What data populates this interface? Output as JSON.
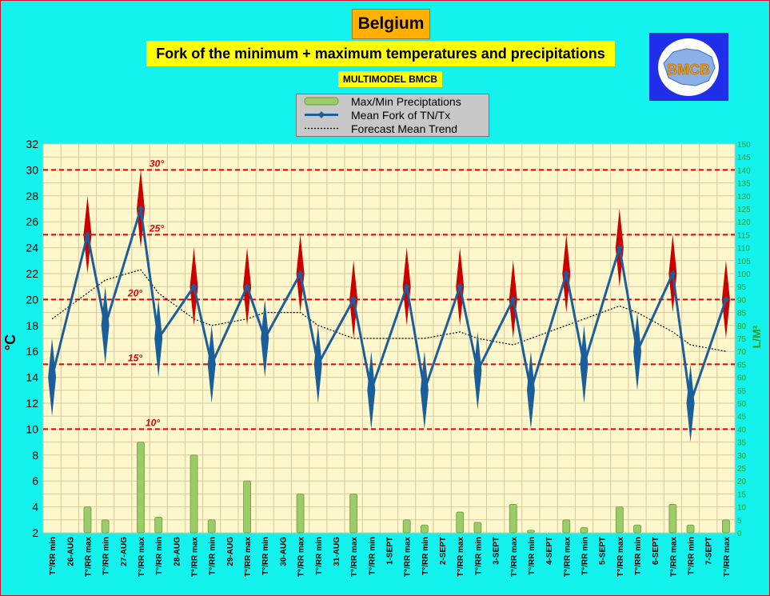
{
  "header": {
    "country": "Belgium",
    "title": "Fork of the minimum + maximum temperatures and precipitations",
    "subtitle": "MULTIMODEL BMCB",
    "logo_text": "BMCB"
  },
  "legend": {
    "precip": "Max/Min Preciptations",
    "fork": "Mean Fork of TN/Tx",
    "trend": "Forecast Mean Trend"
  },
  "colors": {
    "background": "#13f2ec",
    "plot_area": "#fff8cc",
    "grid": "#d8c8a0",
    "fork_line": "#1a5f9c",
    "min_diamond": "#1a5f9c",
    "max_diamond": "#cc0000",
    "ref_line": "#e60000",
    "precip_bar": "#9ccc6a",
    "right_axis": "#2a9d2a"
  },
  "chart_data": {
    "type": "line",
    "ylabel": "°C",
    "y2label": "L/M²",
    "ylim": [
      2,
      32
    ],
    "y2lim": [
      0,
      150
    ],
    "yticks": [
      2,
      4,
      6,
      8,
      10,
      12,
      14,
      16,
      18,
      20,
      22,
      24,
      26,
      28,
      30,
      32
    ],
    "y2ticks": [
      0,
      5,
      10,
      15,
      20,
      25,
      30,
      35,
      40,
      45,
      50,
      55,
      60,
      65,
      70,
      75,
      80,
      85,
      90,
      95,
      100,
      105,
      110,
      115,
      120,
      125,
      130,
      135,
      140,
      145,
      150
    ],
    "categories": [
      "T°/RR min",
      "26-AUG",
      "T°/RR max",
      "T°/RR min",
      "27-AUG",
      "T°/RR max",
      "T°/RR min",
      "28-AUG",
      "T°/RR max",
      "T°/RR min",
      "29-AUG",
      "T°/RR max",
      "T°/RR min",
      "30-AUG",
      "T°/RR max",
      "T°/RR min",
      "31-AUG",
      "T°/RR max",
      "T°/RR min",
      "1-SEPT",
      "T°/RR max",
      "T°/RR min",
      "2-SEPT",
      "T°/RR max",
      "T°/RR min",
      "3-SEPT",
      "T°/RR max",
      "T°/RR min",
      "4-SEPT",
      "T°/RR max",
      "T°/RR min",
      "5-SEPT",
      "T°/RR max",
      "T°/RR min",
      "6-SEPT",
      "T°/RR max",
      "T°/RR min",
      "7-SEPT",
      "T°/RR max"
    ],
    "reference_lines": [
      {
        "value": 30,
        "label": "30°"
      },
      {
        "value": 25,
        "label": "25°"
      },
      {
        "value": 20,
        "label": "20°"
      },
      {
        "value": 15,
        "label": "15°"
      },
      {
        "value": 10,
        "label": "10°"
      }
    ],
    "series": [
      {
        "name": "Mean Fork of TN/Tx",
        "points": [
          {
            "x": 0,
            "y": 14.0,
            "lo": 11.0,
            "hi": 17.0
          },
          {
            "x": 2,
            "y": 25.0,
            "lo": 22.0,
            "hi": 28.0
          },
          {
            "x": 3,
            "y": 18.0,
            "lo": 15.0,
            "hi": 21.0
          },
          {
            "x": 5,
            "y": 27.0,
            "lo": 24.0,
            "hi": 30.0
          },
          {
            "x": 6,
            "y": 17.0,
            "lo": 14.0,
            "hi": 20.0
          },
          {
            "x": 8,
            "y": 21.0,
            "lo": 18.0,
            "hi": 24.0
          },
          {
            "x": 9,
            "y": 15.0,
            "lo": 12.0,
            "hi": 18.0
          },
          {
            "x": 11,
            "y": 21.0,
            "lo": 18.0,
            "hi": 24.0
          },
          {
            "x": 12,
            "y": 17.0,
            "lo": 14.0,
            "hi": 20.0
          },
          {
            "x": 14,
            "y": 22.0,
            "lo": 19.0,
            "hi": 25.0
          },
          {
            "x": 15,
            "y": 15.0,
            "lo": 12.0,
            "hi": 18.0
          },
          {
            "x": 17,
            "y": 20.0,
            "lo": 17.0,
            "hi": 23.0
          },
          {
            "x": 18,
            "y": 13.0,
            "lo": 10.0,
            "hi": 16.0
          },
          {
            "x": 20,
            "y": 21.0,
            "lo": 18.0,
            "hi": 24.0
          },
          {
            "x": 21,
            "y": 13.0,
            "lo": 10.0,
            "hi": 16.0
          },
          {
            "x": 23,
            "y": 21.0,
            "lo": 18.0,
            "hi": 24.0
          },
          {
            "x": 24,
            "y": 14.5,
            "lo": 11.5,
            "hi": 17.5
          },
          {
            "x": 26,
            "y": 20.0,
            "lo": 17.0,
            "hi": 23.0
          },
          {
            "x": 27,
            "y": 13.0,
            "lo": 10.0,
            "hi": 16.0
          },
          {
            "x": 29,
            "y": 22.0,
            "lo": 19.0,
            "hi": 25.0
          },
          {
            "x": 30,
            "y": 15.0,
            "lo": 12.0,
            "hi": 18.0
          },
          {
            "x": 32,
            "y": 24.0,
            "lo": 21.0,
            "hi": 27.0
          },
          {
            "x": 33,
            "y": 16.0,
            "lo": 13.0,
            "hi": 19.0
          },
          {
            "x": 35,
            "y": 22.0,
            "lo": 19.0,
            "hi": 25.0
          },
          {
            "x": 36,
            "y": 12.0,
            "lo": 9.0,
            "hi": 15.0
          },
          {
            "x": 38,
            "y": 20.0,
            "lo": 17.0,
            "hi": 23.0
          }
        ]
      },
      {
        "name": "Forecast Mean Trend",
        "points": [
          {
            "x": 0,
            "y": 18.5
          },
          {
            "x": 2,
            "y": 20.5
          },
          {
            "x": 3,
            "y": 21.5
          },
          {
            "x": 5,
            "y": 22.3
          },
          {
            "x": 6,
            "y": 20.5
          },
          {
            "x": 8,
            "y": 18.5
          },
          {
            "x": 9,
            "y": 18.0
          },
          {
            "x": 11,
            "y": 18.5
          },
          {
            "x": 12,
            "y": 19.0
          },
          {
            "x": 14,
            "y": 19.0
          },
          {
            "x": 15,
            "y": 18.0
          },
          {
            "x": 17,
            "y": 17.0
          },
          {
            "x": 18,
            "y": 17.0
          },
          {
            "x": 20,
            "y": 17.0
          },
          {
            "x": 21,
            "y": 17.0
          },
          {
            "x": 23,
            "y": 17.5
          },
          {
            "x": 24,
            "y": 17.0
          },
          {
            "x": 26,
            "y": 16.5
          },
          {
            "x": 27,
            "y": 17.0
          },
          {
            "x": 29,
            "y": 18.0
          },
          {
            "x": 30,
            "y": 18.5
          },
          {
            "x": 32,
            "y": 19.5
          },
          {
            "x": 33,
            "y": 19.0
          },
          {
            "x": 35,
            "y": 17.5
          },
          {
            "x": 36,
            "y": 16.5
          },
          {
            "x": 38,
            "y": 16.0
          }
        ]
      },
      {
        "name": "Max/Min Preciptations",
        "axis": "right",
        "points": [
          {
            "x": 2,
            "y": 10
          },
          {
            "x": 3,
            "y": 5
          },
          {
            "x": 5,
            "y": 35
          },
          {
            "x": 6,
            "y": 6
          },
          {
            "x": 8,
            "y": 30
          },
          {
            "x": 9,
            "y": 5
          },
          {
            "x": 11,
            "y": 20
          },
          {
            "x": 14,
            "y": 15
          },
          {
            "x": 17,
            "y": 15
          },
          {
            "x": 20,
            "y": 5
          },
          {
            "x": 21,
            "y": 3
          },
          {
            "x": 23,
            "y": 8
          },
          {
            "x": 24,
            "y": 4
          },
          {
            "x": 26,
            "y": 11
          },
          {
            "x": 27,
            "y": 1
          },
          {
            "x": 29,
            "y": 5
          },
          {
            "x": 30,
            "y": 2
          },
          {
            "x": 32,
            "y": 10
          },
          {
            "x": 33,
            "y": 3
          },
          {
            "x": 35,
            "y": 11
          },
          {
            "x": 36,
            "y": 3
          },
          {
            "x": 38,
            "y": 5
          }
        ]
      }
    ]
  }
}
